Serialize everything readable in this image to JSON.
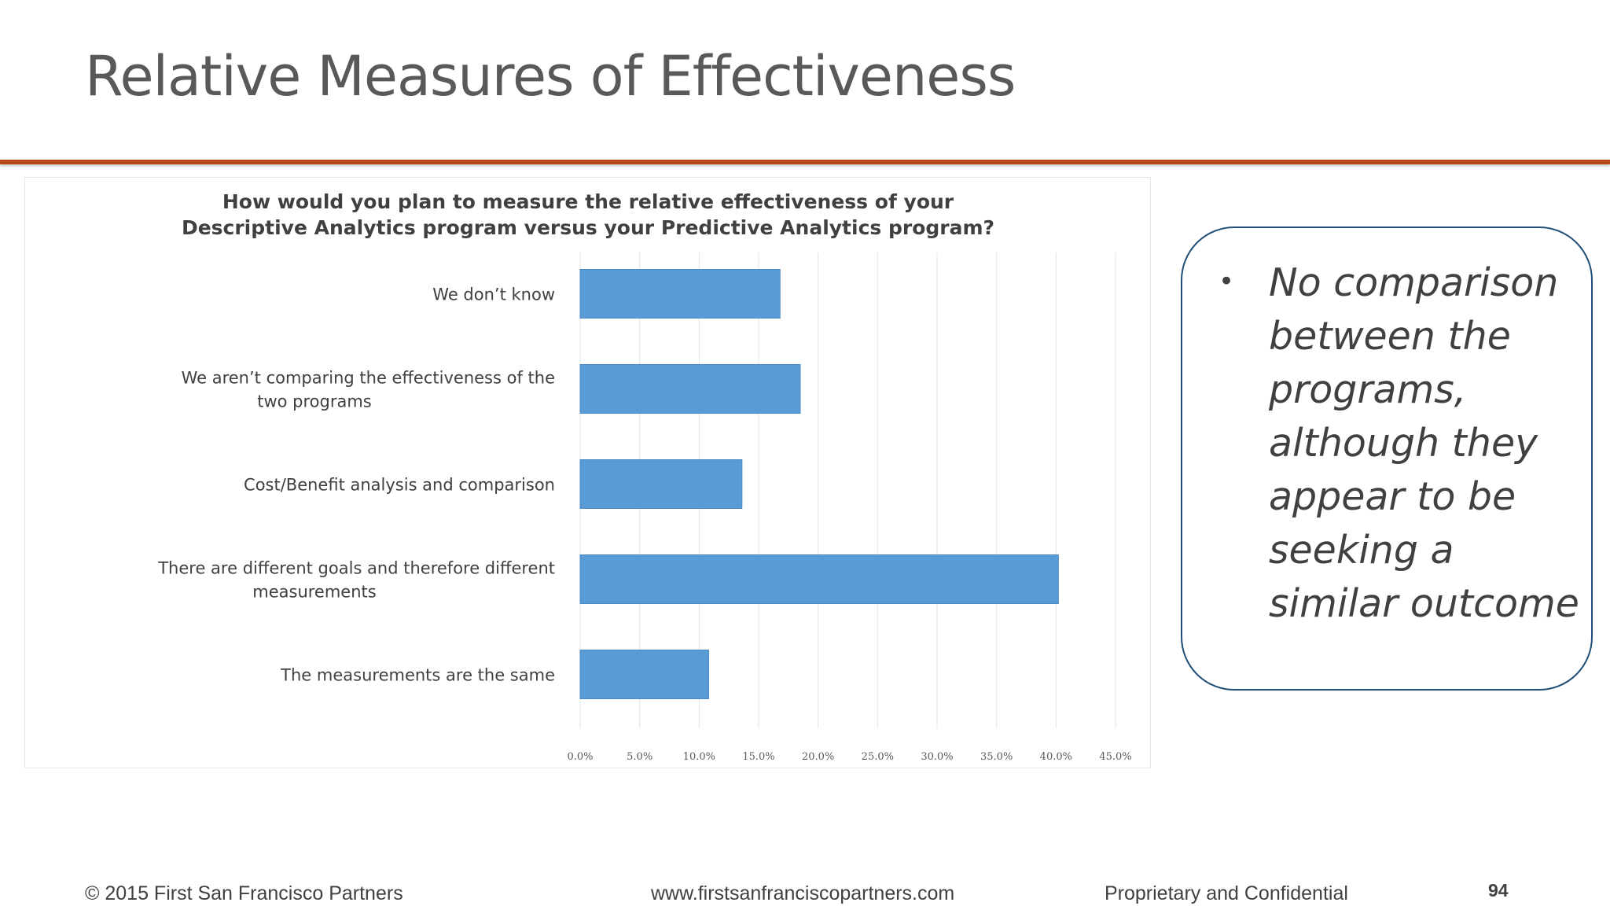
{
  "slide": {
    "title": "Relative Measures of Effectiveness",
    "callout_text": "No comparison between the programs, although they appear to be seeking a similar outcome"
  },
  "footer": {
    "copyright": "© 2015 First San Francisco Partners",
    "website": "www.firstsanfranciscopartners.com",
    "confidential": "Proprietary and Confidential",
    "page_number": "94"
  },
  "colors": {
    "accent_rule": "#b7471b",
    "bar_fill": "#5b9bd5",
    "callout_border": "#1f4e79"
  },
  "chart_data": {
    "type": "bar",
    "orientation": "horizontal",
    "title_lines": [
      "How would you plan to measure the relative effectiveness of your",
      "Descriptive Analytics program versus your Predictive Analytics program?"
    ],
    "categories": [
      [
        "We don’t know"
      ],
      [
        "We aren’t comparing the effectiveness of the",
        "two programs"
      ],
      [
        "Cost/Benefit analysis and comparison"
      ],
      [
        "There are different goals and therefore different",
        "measurements"
      ],
      [
        "The measurements are the same"
      ]
    ],
    "values": [
      16.8,
      18.5,
      13.6,
      40.2,
      10.8
    ],
    "xlim": [
      0,
      45
    ],
    "x_ticks": [
      "0.0%",
      "5.0%",
      "10.0%",
      "15.0%",
      "20.0%",
      "25.0%",
      "30.0%",
      "35.0%",
      "40.0%",
      "45.0%"
    ],
    "grid": true,
    "legend": "none"
  }
}
